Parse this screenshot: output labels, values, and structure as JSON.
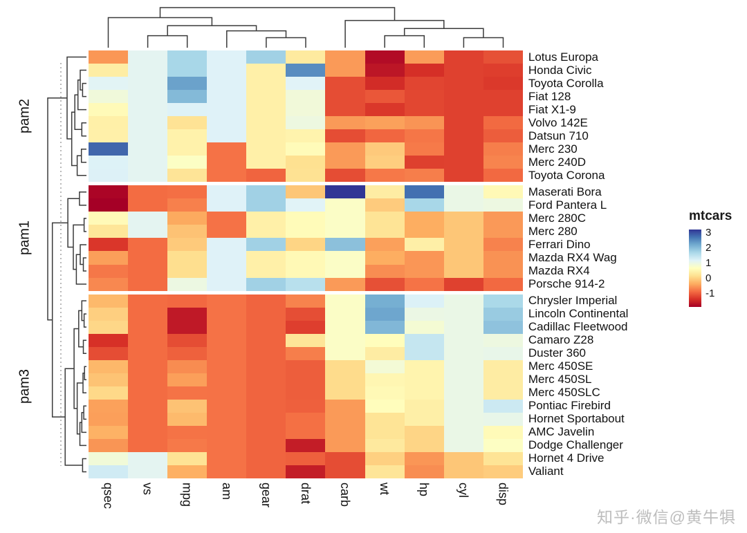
{
  "watermark": {
    "text": "知乎·微信@黄牛犋"
  },
  "chart_data": {
    "type": "heatmap",
    "title": "",
    "scale": "column_zscore",
    "legend": {
      "title": "mtcars",
      "ticks": [
        3,
        2,
        1,
        0,
        -1
      ]
    },
    "colors": {
      "palette": [
        "#a50026",
        "#d73027",
        "#f46d43",
        "#fdae61",
        "#fee090",
        "#ffffbf",
        "#e0f3f8",
        "#abd9e9",
        "#74add1",
        "#4575b4",
        "#313695"
      ]
    },
    "columns": [
      "qsec",
      "vs",
      "mpg",
      "am",
      "gear",
      "drat",
      "carb",
      "wt",
      "hp",
      "cyl",
      "disp"
    ],
    "row_groups": [
      {
        "label": "pam2",
        "rows": [
          {
            "name": "Lotus Europa",
            "values": [
              16.9,
              1,
              30.4,
              1,
              5,
              3.77,
              2,
              1.513,
              113,
              4,
              95.1
            ]
          },
          {
            "name": "Honda Civic",
            "values": [
              18.52,
              1,
              30.4,
              1,
              4,
              4.93,
              2,
              1.615,
              52,
              4,
              75.7
            ]
          },
          {
            "name": "Toyota Corolla",
            "values": [
              19.9,
              1,
              33.9,
              1,
              4,
              4.22,
              1,
              1.835,
              65,
              4,
              71.1
            ]
          },
          {
            "name": "Fiat 128",
            "values": [
              19.47,
              1,
              32.4,
              1,
              4,
              4.08,
              1,
              2.2,
              66,
              4,
              78.7
            ]
          },
          {
            "name": "Fiat X1-9",
            "values": [
              18.9,
              1,
              27.3,
              1,
              4,
              4.08,
              1,
              1.935,
              66,
              4,
              79
            ]
          },
          {
            "name": "Volvo 142E",
            "values": [
              18.6,
              1,
              21.4,
              1,
              4,
              4.11,
              2,
              2.78,
              109,
              4,
              121
            ]
          },
          {
            "name": "Datsun 710",
            "values": [
              18.61,
              1,
              22.8,
              1,
              4,
              3.85,
              1,
              2.32,
              93,
              4,
              108
            ]
          },
          {
            "name": "Merc 230",
            "values": [
              22.9,
              1,
              22.8,
              0,
              4,
              3.92,
              2,
              3.15,
              95,
              4,
              140.8
            ]
          },
          {
            "name": "Merc 240D",
            "values": [
              20,
              1,
              24.4,
              0,
              4,
              3.69,
              2,
              3.19,
              62,
              4,
              146.7
            ]
          },
          {
            "name": "Toyota Corona",
            "values": [
              20.01,
              1,
              21.5,
              0,
              3,
              3.7,
              1,
              2.465,
              97,
              4,
              120.1
            ]
          }
        ]
      },
      {
        "label": "pam1",
        "rows": [
          {
            "name": "Maserati Bora",
            "values": [
              14.6,
              0,
              15,
              1,
              5,
              3.54,
              8,
              3.57,
              335,
              8,
              301
            ]
          },
          {
            "name": "Ford Pantera L",
            "values": [
              14.5,
              0,
              15.8,
              1,
              5,
              4.22,
              4,
              3.17,
              264,
              8,
              351
            ]
          },
          {
            "name": "Merc 280C",
            "values": [
              18.9,
              1,
              17.8,
              0,
              4,
              3.92,
              4,
              3.44,
              123,
              6,
              167.6
            ]
          },
          {
            "name": "Merc 280",
            "values": [
              18.3,
              1,
              19.2,
              0,
              4,
              3.92,
              4,
              3.44,
              123,
              6,
              167.6
            ]
          },
          {
            "name": "Ferrari Dino",
            "values": [
              15.5,
              0,
              19.7,
              1,
              5,
              3.62,
              6,
              2.77,
              175,
              6,
              145
            ]
          },
          {
            "name": "Mazda RX4 Wag",
            "values": [
              17.02,
              0,
              21,
              1,
              4,
              3.9,
              4,
              2.875,
              110,
              6,
              160
            ]
          },
          {
            "name": "Mazda RX4",
            "values": [
              16.46,
              0,
              21,
              1,
              4,
              3.9,
              4,
              2.62,
              110,
              6,
              160
            ]
          },
          {
            "name": "Porsche 914-2",
            "values": [
              16.7,
              0,
              26,
              1,
              5,
              4.43,
              2,
              2.14,
              91,
              4,
              120.3
            ]
          }
        ]
      },
      {
        "label": "pam3",
        "rows": [
          {
            "name": "Chrysler Imperial",
            "values": [
              17.42,
              0,
              14.7,
              0,
              3,
              3.23,
              4,
              5.345,
              230,
              8,
              440
            ]
          },
          {
            "name": "Lincoln Continental",
            "values": [
              17.82,
              0,
              10.4,
              0,
              3,
              3,
              4,
              5.424,
              215,
              8,
              460
            ]
          },
          {
            "name": "Cadillac Fleetwood",
            "values": [
              17.98,
              0,
              10.4,
              0,
              3,
              2.93,
              4,
              5.25,
              205,
              8,
              472
            ]
          },
          {
            "name": "Camaro Z28",
            "values": [
              15.41,
              0,
              13.3,
              0,
              3,
              3.73,
              4,
              3.84,
              245,
              8,
              350
            ]
          },
          {
            "name": "Duster 360",
            "values": [
              15.84,
              0,
              14.3,
              0,
              3,
              3.21,
              4,
              3.57,
              245,
              8,
              360
            ]
          },
          {
            "name": "Merc 450SE",
            "values": [
              17.4,
              0,
              16.4,
              0,
              3,
              3.07,
              3,
              4.07,
              180,
              8,
              275.8
            ]
          },
          {
            "name": "Merc 450SL",
            "values": [
              17.6,
              0,
              17.3,
              0,
              3,
              3.07,
              3,
              3.73,
              180,
              8,
              275.8
            ]
          },
          {
            "name": "Merc 450SLC",
            "values": [
              18,
              0,
              15.2,
              0,
              3,
              3.07,
              3,
              3.78,
              180,
              8,
              275.8
            ]
          },
          {
            "name": "Pontiac Firebird",
            "values": [
              17.05,
              0,
              19.2,
              0,
              3,
              3.08,
              2,
              3.845,
              175,
              8,
              400
            ]
          },
          {
            "name": "Hornet Sportabout",
            "values": [
              17.02,
              0,
              18.7,
              0,
              3,
              3.15,
              2,
              3.44,
              175,
              8,
              360
            ]
          },
          {
            "name": "AMC Javelin",
            "values": [
              17.3,
              0,
              15.2,
              0,
              3,
              3.15,
              2,
              3.435,
              150,
              8,
              304
            ]
          },
          {
            "name": "Dodge Challenger",
            "values": [
              16.87,
              0,
              15.5,
              0,
              3,
              2.76,
              2,
              3.52,
              150,
              8,
              318
            ]
          },
          {
            "name": "Hornet 4 Drive",
            "values": [
              19.44,
              1,
              21.4,
              0,
              3,
              3.08,
              1,
              3.215,
              110,
              6,
              258
            ]
          },
          {
            "name": "Valiant",
            "values": [
              20.22,
              1,
              18.1,
              0,
              3,
              2.76,
              1,
              3.46,
              105,
              6,
              225
            ]
          }
        ]
      }
    ],
    "column_tree": [
      1.0,
      [
        0.75,
        "qsec",
        [
          0.55,
          [
            0.3,
            "vs",
            "mpg"
          ],
          [
            0.42,
            "am",
            [
              0.25,
              "gear",
              "drat"
            ]
          ]
        ]
      ],
      [
        0.68,
        "carb",
        [
          0.48,
          [
            0.3,
            "wt",
            "hp"
          ],
          [
            0.25,
            "cyl",
            "disp"
          ]
        ]
      ]
    ],
    "row_tree": [
      1.0,
      [
        0.5,
        "Lotus Europa",
        [
          0.38,
          [
            0.3,
            [
              0.22,
              [
                0.16,
                "Honda Civic",
                [
                  0.1,
                  "Toyota Corolla",
                  "Fiat 128"
                ]
              ],
              "Fiat X1-9"
            ],
            [
              0.12,
              "Volvo 142E",
              "Datsun 710"
            ]
          ],
          [
            0.24,
            [
              0.13,
              "Merc 230",
              "Merc 240D"
            ],
            "Toyota Corona"
          ]
        ]
      ],
      [
        0.88,
        [
          0.48,
          [
            0.18,
            "Maserati Bora",
            "Ford Pantera L"
          ],
          [
            0.34,
            [
              0.06,
              "Merc 280C",
              "Merc 280"
            ],
            [
              0.26,
              [
                0.16,
                "Ferrari Dino",
                [
                  0.08,
                  "Mazda RX4 Wag",
                  "Mazda RX4"
                ]
              ],
              "Porsche 914-2"
            ]
          ]
        ],
        [
          0.55,
          [
            0.32,
            [
              0.2,
              [
                0.12,
                "Chrysler Imperial",
                [
                  0.06,
                  "Lincoln Continental",
                  "Cadillac Fleetwood"
                ]
              ],
              [
                0.08,
                "Camaro Z28",
                "Duster 360"
              ]
            ],
            [
              0.24,
              [
                0.09,
                [
                  0.05,
                  "Merc 450SE",
                  "Merc 450SL"
                ],
                "Merc 450SLC"
              ],
              [
                0.17,
                [
                  0.12,
                  [
                    0.07,
                    "Pontiac Firebird",
                    "Hornet Sportabout"
                  ],
                  "AMC Javelin"
                ],
                "Dodge Challenger"
              ]
            ]
          ],
          [
            0.1,
            "Hornet 4 Drive",
            "Valiant"
          ]
        ]
      ]
    ]
  }
}
